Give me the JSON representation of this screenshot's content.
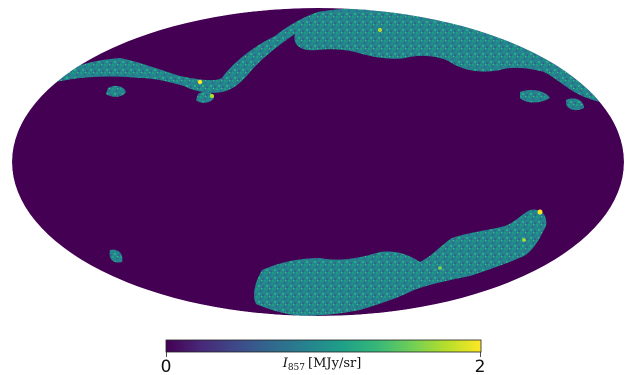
{
  "map": {
    "projection": "mollweide",
    "background_color": "#440154",
    "masked_region_color": "#440154",
    "dust_colors": [
      "#2d708e",
      "#25858e",
      "#1e9b8a",
      "#2ab07f",
      "#52c569",
      "#86d549",
      "#fde725"
    ]
  },
  "colorbar": {
    "min_label": "0",
    "max_label": "2",
    "label_symbol": "I",
    "label_subscript": "857",
    "label_unit": "[MJy/sr]",
    "vmin": 0,
    "vmax": 2,
    "colormap": "viridis",
    "colormap_stops": [
      "#440154",
      "#482878",
      "#3e4989",
      "#31688e",
      "#26828e",
      "#1f9e89",
      "#35b779",
      "#6ece58",
      "#b5de2b",
      "#fde725"
    ]
  }
}
